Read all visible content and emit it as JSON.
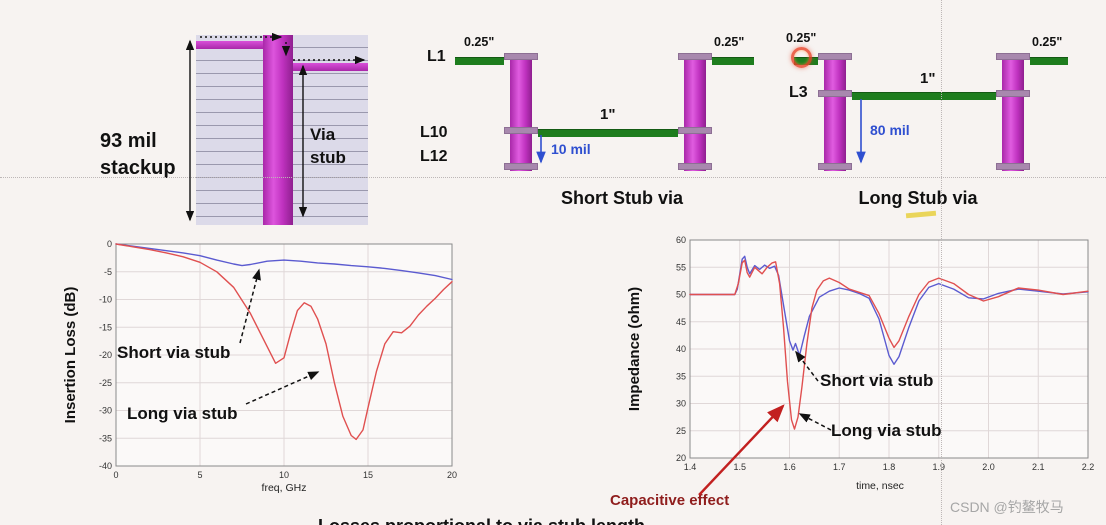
{
  "stackup": {
    "height_label_line1": "93 mil",
    "height_label_line2": "stackup",
    "via_stub_line1": "Via",
    "via_stub_line2": "stub"
  },
  "short_stub": {
    "layer_top": "L1",
    "layer_mid": "L10",
    "layer_bottom": "L12",
    "left_trace": "0.25\"",
    "right_trace": "0.25\"",
    "center_trace": "1\"",
    "stub_length": "10 mil",
    "caption": "Short Stub via"
  },
  "long_stub": {
    "layer": "L3",
    "left_trace": "0.25\"",
    "right_trace": "0.25\"",
    "center_trace": "1\"",
    "stub_length": "80 mil",
    "caption": "Long Stub via"
  },
  "bottom_caption_partial": "Losses proportional to via stub length",
  "watermark": "CSDN @钓鳌牧马",
  "colors": {
    "via_magenta": "#c032c0",
    "pad_purple": "#a888ae",
    "trace_green": "#1e7d1e",
    "annotation_blue": "#2f4fd0",
    "short_curve_blue": "#5b5bd0",
    "long_curve_red": "#e05050",
    "capacitive_red": "#8f1d1d"
  },
  "chart_data": [
    {
      "type": "line",
      "title": "",
      "xlabel": "freq, GHz",
      "ylabel": "Insertion Loss (dB)",
      "xlim": [
        0,
        20
      ],
      "ylim": [
        -40,
        0
      ],
      "xticks": [
        "0",
        "5",
        "10",
        "15",
        "20"
      ],
      "yticks": [
        "0",
        "-5",
        "-10",
        "-15",
        "-20",
        "-25",
        "-30",
        "-35",
        "-40"
      ],
      "grid": true,
      "legend": "none",
      "plot_bg": "#fbf9f8",
      "annotations": {
        "short": "Short via stub",
        "long": "Long via stub"
      },
      "series": [
        {
          "name": "Short via stub",
          "color": "#5b5bd0",
          "points": [
            [
              0,
              0
            ],
            [
              1,
              -0.4
            ],
            [
              2,
              -0.8
            ],
            [
              3,
              -1.2
            ],
            [
              4,
              -1.6
            ],
            [
              5,
              -2.1
            ],
            [
              6,
              -2.9
            ],
            [
              7,
              -3.6
            ],
            [
              7.5,
              -3.9
            ],
            [
              8,
              -3.7
            ],
            [
              9,
              -3.1
            ],
            [
              10,
              -2.9
            ],
            [
              11,
              -3.1
            ],
            [
              12,
              -3.4
            ],
            [
              13,
              -3.6
            ],
            [
              14,
              -3.9
            ],
            [
              15,
              -4.1
            ],
            [
              16,
              -4.4
            ],
            [
              17,
              -4.8
            ],
            [
              18,
              -5.2
            ],
            [
              19,
              -5.7
            ],
            [
              20,
              -6.4
            ]
          ]
        },
        {
          "name": "Long via stub",
          "color": "#e05050",
          "points": [
            [
              0,
              0
            ],
            [
              1,
              -0.5
            ],
            [
              2,
              -1.0
            ],
            [
              3,
              -1.6
            ],
            [
              4,
              -2.3
            ],
            [
              5,
              -3.3
            ],
            [
              6,
              -5.0
            ],
            [
              7,
              -7.8
            ],
            [
              8,
              -12.5
            ],
            [
              9,
              -18.5
            ],
            [
              9.5,
              -21.5
            ],
            [
              10,
              -20.5
            ],
            [
              10.4,
              -16
            ],
            [
              10.8,
              -12
            ],
            [
              11.2,
              -10.6
            ],
            [
              11.6,
              -11.2
            ],
            [
              12,
              -13.5
            ],
            [
              12.5,
              -18
            ],
            [
              13,
              -25
            ],
            [
              13.5,
              -31
            ],
            [
              14,
              -34.5
            ],
            [
              14.3,
              -35.2
            ],
            [
              14.7,
              -33.5
            ],
            [
              15,
              -29.5
            ],
            [
              15.5,
              -23
            ],
            [
              16,
              -18
            ],
            [
              16.5,
              -15.8
            ],
            [
              17,
              -16
            ],
            [
              17.5,
              -14.8
            ],
            [
              18,
              -12.8
            ],
            [
              18.5,
              -11.2
            ],
            [
              19,
              -9.8
            ],
            [
              19.5,
              -8.2
            ],
            [
              20,
              -6.8
            ]
          ]
        }
      ]
    },
    {
      "type": "line",
      "title": "",
      "xlabel": "time, nsec",
      "ylabel": "Impedance (ohm)",
      "xlim": [
        1.4,
        2.2
      ],
      "ylim": [
        20,
        60
      ],
      "xticks": [
        "1.4",
        "1.5",
        "1.6",
        "1.7",
        "1.8",
        "1.9",
        "2.0",
        "2.1",
        "2.2"
      ],
      "yticks": [
        "20",
        "25",
        "30",
        "35",
        "40",
        "45",
        "50",
        "55",
        "60"
      ],
      "grid": true,
      "legend": "none",
      "plot_bg": "#fbf9f8",
      "annotations": {
        "short": "Short via stub",
        "long": "Long via stub"
      },
      "capacitive_label": "Capacitive effect",
      "series": [
        {
          "name": "Short via stub",
          "color": "#5b5bd0",
          "points": [
            [
              1.4,
              50
            ],
            [
              1.49,
              50
            ],
            [
              1.495,
              51
            ],
            [
              1.505,
              56.5
            ],
            [
              1.51,
              57
            ],
            [
              1.515,
              55
            ],
            [
              1.52,
              53.8
            ],
            [
              1.53,
              55.3
            ],
            [
              1.54,
              54.6
            ],
            [
              1.55,
              55.4
            ],
            [
              1.56,
              54.8
            ],
            [
              1.57,
              55.2
            ],
            [
              1.578,
              53.5
            ],
            [
              1.59,
              47
            ],
            [
              1.6,
              41.5
            ],
            [
              1.607,
              39.8
            ],
            [
              1.612,
              41
            ],
            [
              1.62,
              38.8
            ],
            [
              1.63,
              42.5
            ],
            [
              1.64,
              46
            ],
            [
              1.66,
              49.5
            ],
            [
              1.68,
              50.6
            ],
            [
              1.7,
              51.2
            ],
            [
              1.72,
              50.8
            ],
            [
              1.74,
              50.2
            ],
            [
              1.76,
              49.3
            ],
            [
              1.78,
              45.5
            ],
            [
              1.8,
              38.8
            ],
            [
              1.81,
              37.2
            ],
            [
              1.82,
              38.6
            ],
            [
              1.84,
              44
            ],
            [
              1.86,
              48.8
            ],
            [
              1.88,
              51.3
            ],
            [
              1.9,
              52
            ],
            [
              1.93,
              51
            ],
            [
              1.96,
              49.4
            ],
            [
              1.99,
              49.2
            ],
            [
              2.02,
              50.2
            ],
            [
              2.06,
              51
            ],
            [
              2.1,
              50.6
            ],
            [
              2.15,
              50.1
            ],
            [
              2.2,
              50.5
            ]
          ]
        },
        {
          "name": "Long via stub",
          "color": "#e05050",
          "points": [
            [
              1.4,
              50
            ],
            [
              1.49,
              50
            ],
            [
              1.497,
              52
            ],
            [
              1.505,
              55.8
            ],
            [
              1.51,
              56.3
            ],
            [
              1.515,
              54
            ],
            [
              1.52,
              53.2
            ],
            [
              1.53,
              55
            ],
            [
              1.545,
              53.8
            ],
            [
              1.555,
              55
            ],
            [
              1.565,
              55.8
            ],
            [
              1.572,
              56
            ],
            [
              1.58,
              52
            ],
            [
              1.588,
              44
            ],
            [
              1.596,
              34
            ],
            [
              1.604,
              27
            ],
            [
              1.61,
              25.3
            ],
            [
              1.617,
              27.5
            ],
            [
              1.625,
              33
            ],
            [
              1.635,
              41
            ],
            [
              1.645,
              47.5
            ],
            [
              1.655,
              50.8
            ],
            [
              1.668,
              52.5
            ],
            [
              1.68,
              53
            ],
            [
              1.7,
              52.2
            ],
            [
              1.72,
              51
            ],
            [
              1.74,
              50.4
            ],
            [
              1.76,
              49.8
            ],
            [
              1.78,
              46.5
            ],
            [
              1.8,
              42
            ],
            [
              1.81,
              40.3
            ],
            [
              1.82,
              41.5
            ],
            [
              1.84,
              46
            ],
            [
              1.86,
              50
            ],
            [
              1.88,
              52.3
            ],
            [
              1.9,
              53
            ],
            [
              1.93,
              52
            ],
            [
              1.96,
              50
            ],
            [
              1.99,
              48.8
            ],
            [
              2.02,
              49.6
            ],
            [
              2.06,
              51.2
            ],
            [
              2.1,
              50.8
            ],
            [
              2.15,
              50
            ],
            [
              2.2,
              50.6
            ]
          ]
        }
      ]
    }
  ]
}
